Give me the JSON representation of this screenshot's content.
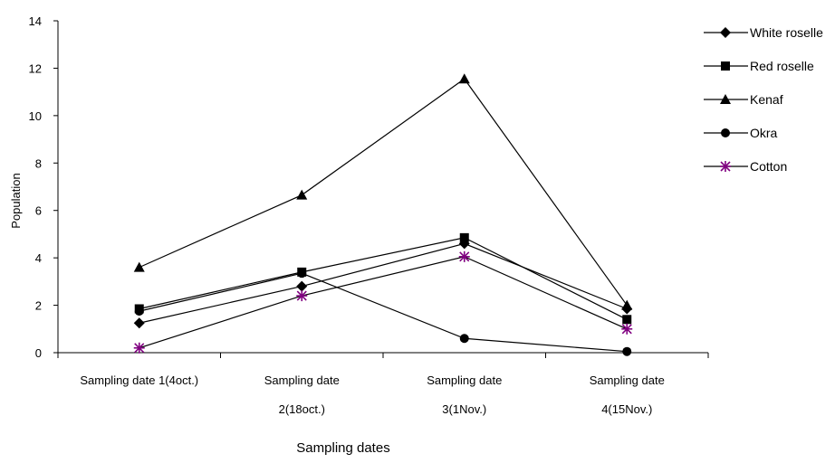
{
  "chart_data": {
    "type": "line",
    "categories": [
      [
        "Sampling date 1(4oct.)"
      ],
      [
        "Sampling date",
        "2(18oct.)"
      ],
      [
        "Sampling date",
        "3(1Nov.)"
      ],
      [
        "Sampling date",
        "4(15Nov.)"
      ]
    ],
    "xlabel": "Sampling dates",
    "ylabel": "Population",
    "ylim": [
      0,
      14
    ],
    "yticks": [
      "0",
      "2",
      "4",
      "6",
      "8",
      "10",
      "12",
      "14"
    ],
    "grid": false,
    "legend_position": "right",
    "series": [
      {
        "name": "White roselle",
        "marker": "diamond",
        "color": "#000000",
        "values": [
          1.25,
          2.8,
          4.6,
          1.85
        ]
      },
      {
        "name": "Red roselle",
        "marker": "square",
        "color": "#000000",
        "values": [
          1.85,
          3.4,
          4.85,
          1.4
        ]
      },
      {
        "name": "Kenaf",
        "marker": "triangle",
        "color": "#000000",
        "values": [
          3.6,
          6.65,
          11.55,
          2.0
        ]
      },
      {
        "name": "Okra",
        "marker": "circle",
        "color": "#000000",
        "values": [
          1.75,
          3.35,
          0.6,
          0.05
        ]
      },
      {
        "name": "Cotton",
        "marker": "star",
        "color": "#800080",
        "values": [
          0.2,
          2.4,
          4.05,
          1.0
        ]
      }
    ]
  }
}
